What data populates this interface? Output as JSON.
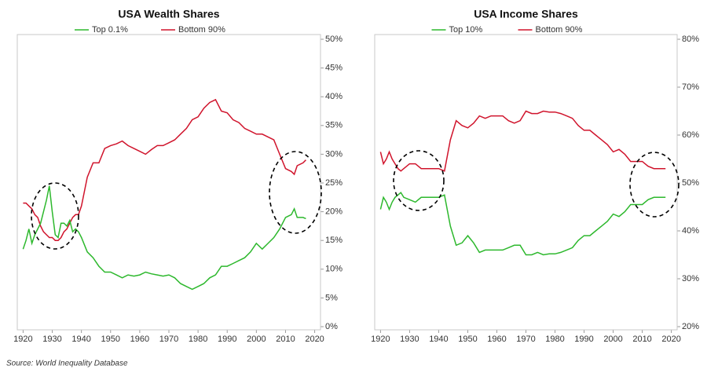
{
  "chart_data": [
    {
      "type": "line",
      "title": "USA Wealth Shares",
      "x": [
        1920,
        1921,
        1922,
        1923,
        1924,
        1925,
        1926,
        1927,
        1928,
        1929,
        1930,
        1931,
        1932,
        1933,
        1934,
        1935,
        1936,
        1937,
        1938,
        1939,
        1940,
        1942,
        1944,
        1946,
        1948,
        1950,
        1952,
        1954,
        1956,
        1958,
        1960,
        1962,
        1964,
        1966,
        1968,
        1970,
        1972,
        1974,
        1976,
        1978,
        1980,
        1982,
        1984,
        1986,
        1988,
        1990,
        1992,
        1994,
        1996,
        1998,
        2000,
        2002,
        2004,
        2006,
        2008,
        2010,
        2012,
        2013,
        2014,
        2016,
        2017
      ],
      "series": [
        {
          "name": "Top 0.1%",
          "color": "#2db82d",
          "values": [
            13.5,
            15,
            17,
            14.5,
            16,
            17,
            18,
            20,
            22,
            24.5,
            20,
            16,
            15.5,
            18,
            18,
            17.5,
            18.5,
            16.5,
            17,
            16.5,
            15.5,
            13,
            12,
            10.5,
            9.5,
            9.5,
            9,
            8.5,
            9,
            8.8,
            9,
            9.5,
            9.2,
            9,
            8.8,
            9,
            8.5,
            7.5,
            7,
            6.5,
            7,
            7.5,
            8.5,
            9,
            10.5,
            10.5,
            11,
            11.5,
            12,
            13,
            14.5,
            13.5,
            14.5,
            15.5,
            17,
            19,
            19.5,
            20.5,
            19,
            19,
            18.8
          ]
        },
        {
          "name": "Bottom 90%",
          "color": "#d0142c",
          "values": [
            21.5,
            21.5,
            21,
            20.5,
            19.5,
            19,
            17.5,
            16.5,
            16,
            15.5,
            15.5,
            15,
            15,
            15.5,
            16.5,
            17,
            18,
            19,
            19.5,
            19.5,
            21,
            26,
            28.5,
            28.5,
            31,
            31.5,
            31.8,
            32.3,
            31.5,
            31,
            30.5,
            30,
            30.8,
            31.5,
            31.5,
            32,
            32.5,
            33.5,
            34.5,
            36,
            36.5,
            38,
            39,
            39.5,
            37.5,
            37.2,
            36,
            35.5,
            34.5,
            34,
            33.5,
            33.5,
            33,
            32.5,
            30,
            27.5,
            27,
            26.5,
            28,
            28.5,
            29
          ]
        }
      ],
      "xlim": [
        1918,
        2022
      ],
      "xticks": [
        1920,
        1930,
        1940,
        1950,
        1960,
        1970,
        1980,
        1990,
        2000,
        2010,
        2020
      ],
      "ylim": [
        0,
        50
      ],
      "yticks": [
        {
          "value": 0,
          "label": "0%"
        },
        {
          "value": 5,
          "label": "5%"
        },
        {
          "value": 10,
          "label": "10%"
        },
        {
          "value": 15,
          "label": "15%"
        },
        {
          "value": 20,
          "label": "20%"
        },
        {
          "value": 25,
          "label": "25%"
        },
        {
          "value": 30,
          "label": "30%"
        },
        {
          "value": 35,
          "label": "35%"
        },
        {
          "value": 40,
          "label": "40%"
        },
        {
          "value": 45,
          "label": "45%"
        },
        {
          "value": 50,
          "label": "50%"
        }
      ]
    },
    {
      "type": "line",
      "title": "USA Income Shares",
      "x": [
        1920,
        1921,
        1922,
        1923,
        1924,
        1925,
        1926,
        1927,
        1928,
        1930,
        1932,
        1934,
        1936,
        1938,
        1940,
        1942,
        1944,
        1946,
        1948,
        1950,
        1952,
        1954,
        1956,
        1958,
        1960,
        1962,
        1964,
        1966,
        1968,
        1970,
        1972,
        1974,
        1976,
        1978,
        1980,
        1982,
        1984,
        1986,
        1988,
        1990,
        1992,
        1994,
        1996,
        1998,
        2000,
        2002,
        2004,
        2006,
        2008,
        2010,
        2012,
        2014,
        2016,
        2018
      ],
      "series": [
        {
          "name": "Top 10%",
          "color": "#2db82d",
          "values": [
            44.5,
            47,
            46,
            44.5,
            46,
            47,
            47.5,
            48,
            47,
            46.5,
            46,
            47,
            47,
            47,
            47,
            47.5,
            41,
            37,
            37.5,
            39,
            37.5,
            35.5,
            36,
            36,
            36,
            36,
            36.5,
            37,
            37,
            35,
            35,
            35.5,
            35,
            35.2,
            35.2,
            35.5,
            36,
            36.5,
            38,
            39,
            39,
            40,
            41,
            42,
            43.5,
            43,
            44,
            45.5,
            45.5,
            45.5,
            46.5,
            47,
            47,
            47
          ]
        },
        {
          "name": "Bottom 90%",
          "color": "#d0142c",
          "values": [
            56.5,
            54,
            55,
            56.5,
            55,
            54,
            53,
            52.5,
            53,
            54,
            54,
            53,
            53,
            53,
            53,
            52.5,
            59,
            63,
            62,
            61.5,
            62.5,
            64,
            63.5,
            64,
            64,
            64,
            63,
            62.5,
            63,
            65,
            64.5,
            64.5,
            65,
            64.8,
            64.8,
            64.5,
            64,
            63.5,
            62,
            61,
            61,
            60,
            59,
            58,
            56.5,
            57,
            56,
            54.5,
            54.5,
            54.5,
            53.5,
            53,
            53,
            53
          ]
        }
      ],
      "xlim": [
        1918,
        2022
      ],
      "xticks": [
        1920,
        1930,
        1940,
        1950,
        1960,
        1970,
        1980,
        1990,
        2000,
        2010,
        2020
      ],
      "ylim": [
        20,
        80
      ],
      "yticks": [
        {
          "value": 20,
          "label": "20%"
        },
        {
          "value": 30,
          "label": "30%"
        },
        {
          "value": 40,
          "label": "40%"
        },
        {
          "value": 50,
          "label": "50%"
        },
        {
          "value": 60,
          "label": "60%"
        },
        {
          "value": 70,
          "label": "70%"
        },
        {
          "value": 80,
          "label": "80%"
        }
      ]
    }
  ],
  "source": "Source: World Inequality Database"
}
